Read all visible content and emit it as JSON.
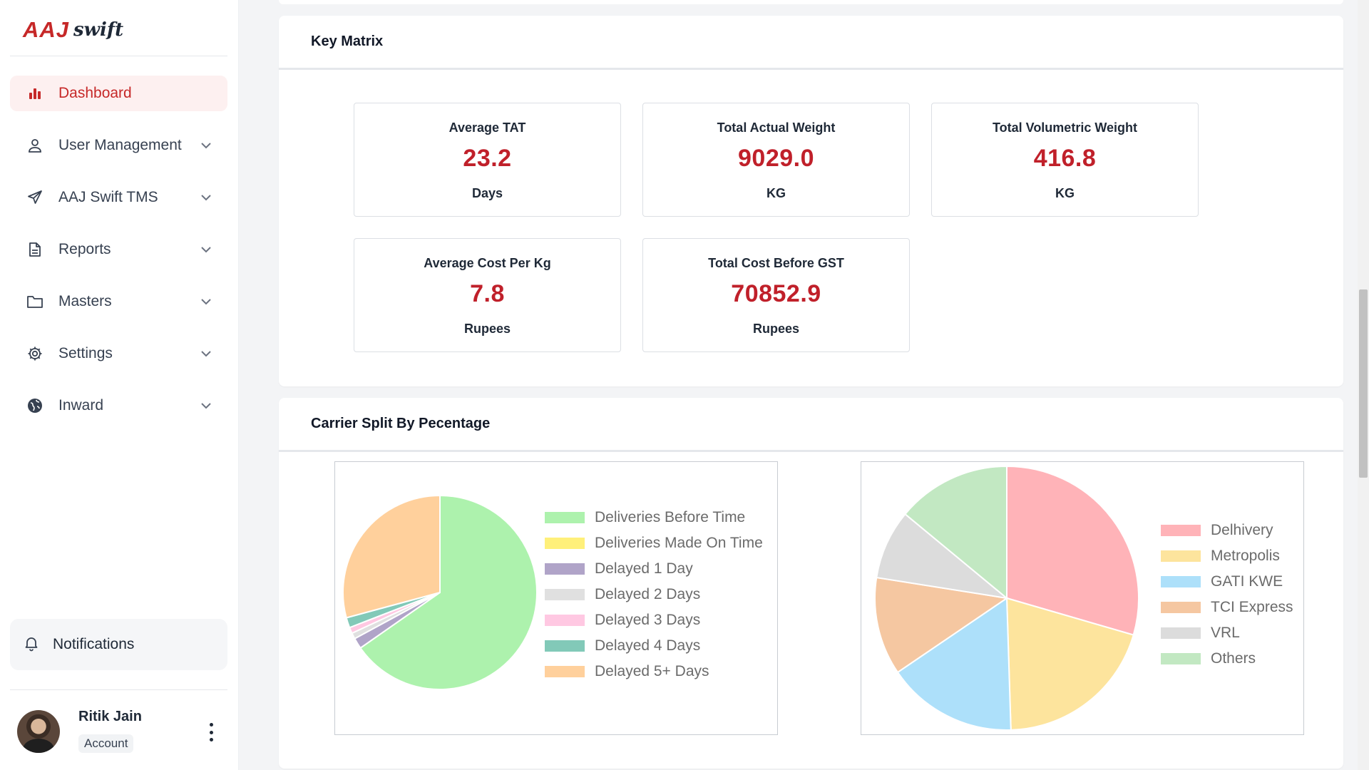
{
  "app": {
    "logo_main": "AAJ",
    "logo_sub": "swift"
  },
  "sidebar": {
    "items": [
      {
        "label": "Dashboard",
        "icon": "bar-chart-icon",
        "active": true
      },
      {
        "label": "User Management",
        "icon": "user-icon",
        "expandable": true
      },
      {
        "label": "AAJ Swift TMS",
        "icon": "paper-plane-icon",
        "expandable": true
      },
      {
        "label": "Reports",
        "icon": "document-icon",
        "expandable": true
      },
      {
        "label": "Masters",
        "icon": "folder-icon",
        "expandable": true
      },
      {
        "label": "Settings",
        "icon": "gear-icon",
        "expandable": true
      },
      {
        "label": "Inward",
        "icon": "globe-icon",
        "expandable": true
      }
    ],
    "notifications_label": "Notifications",
    "account": {
      "name": "Ritik Jain",
      "role": "Account"
    }
  },
  "key_matrix": {
    "title": "Key Matrix",
    "cards": [
      {
        "label": "Average TAT",
        "value": "23.2",
        "unit": "Days"
      },
      {
        "label": "Total Actual Weight",
        "value": "9029.0",
        "unit": "KG"
      },
      {
        "label": "Total Volumetric Weight",
        "value": "416.8",
        "unit": "KG"
      },
      {
        "label": "Average Cost Per Kg",
        "value": "7.8",
        "unit": "Rupees"
      },
      {
        "label": "Total Cost Before GST",
        "value": "70852.9",
        "unit": "Rupees"
      }
    ]
  },
  "carrier_split": {
    "title": "Carrier Split By Pecentage"
  },
  "colors": {
    "accent": "#c62828",
    "kpi_value": "#c0202a"
  },
  "chart_data": [
    {
      "type": "pie",
      "legend_position": "right",
      "categories": [
        "Deliveries Before Time",
        "Deliveries Made On Time",
        "Delayed 1 Day",
        "Delayed 2 Days",
        "Delayed 3 Days",
        "Delayed 4 Days",
        "Delayed 5+ Days"
      ],
      "values": [
        65.3,
        0,
        1.8,
        1.0,
        1.0,
        1.7,
        29.2
      ],
      "colors": [
        "#adf2ad",
        "#fff07a",
        "#b0a4c8",
        "#e0e0e0",
        "#ffc8e2",
        "#82c9b8",
        "#ffd09c"
      ]
    },
    {
      "type": "pie",
      "legend_position": "right",
      "categories": [
        "Delhivery",
        "Metropolis",
        "GATI KWE",
        "TCI Express",
        "VRL",
        "Others"
      ],
      "values": [
        29.5,
        20.0,
        16.0,
        12.0,
        8.5,
        14.0
      ],
      "colors": [
        "#ffb3b8",
        "#fde49d",
        "#ade0fa",
        "#f5c7a1",
        "#dcdcdc",
        "#c2e8c2"
      ]
    }
  ]
}
